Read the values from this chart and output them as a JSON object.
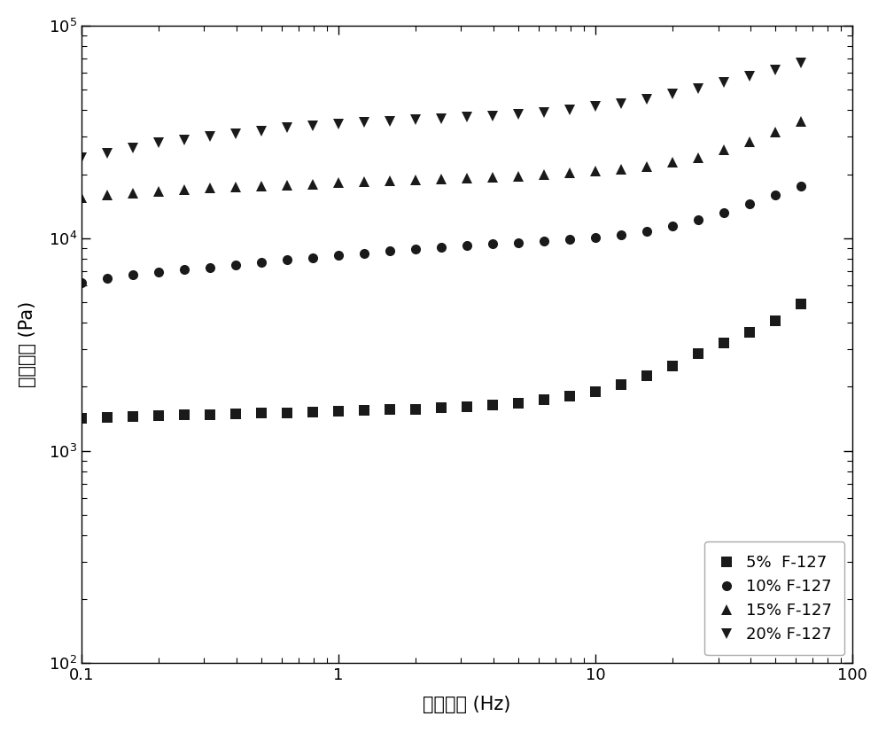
{
  "title": "",
  "xlabel": "扫描频率 (Hz)",
  "ylabel": "弹性模量 (Pa)",
  "xlim": [
    0.1,
    100
  ],
  "ylim": [
    100,
    100000
  ],
  "background_color": "#ffffff",
  "series": [
    {
      "label": "5%  F-127",
      "marker": "s",
      "color": "#1a1a1a",
      "x": [
        0.1,
        0.126,
        0.158,
        0.2,
        0.251,
        0.316,
        0.398,
        0.5,
        0.631,
        0.794,
        1.0,
        1.259,
        1.585,
        1.995,
        2.512,
        3.162,
        3.981,
        5.012,
        6.31,
        7.943,
        10.0,
        12.589,
        15.849,
        19.953,
        25.119,
        31.623,
        39.811,
        50.119,
        63.096
      ],
      "y": [
        1420,
        1440,
        1450,
        1460,
        1470,
        1480,
        1490,
        1500,
        1510,
        1520,
        1540,
        1550,
        1560,
        1570,
        1590,
        1610,
        1640,
        1680,
        1730,
        1800,
        1900,
        2050,
        2250,
        2500,
        2850,
        3200,
        3600,
        4100,
        4900
      ]
    },
    {
      "label": "10% F-127",
      "marker": "o",
      "color": "#1a1a1a",
      "x": [
        0.1,
        0.126,
        0.158,
        0.2,
        0.251,
        0.316,
        0.398,
        0.5,
        0.631,
        0.794,
        1.0,
        1.259,
        1.585,
        1.995,
        2.512,
        3.162,
        3.981,
        5.012,
        6.31,
        7.943,
        10.0,
        12.589,
        15.849,
        19.953,
        25.119,
        31.623,
        39.811,
        50.119,
        63.096
      ],
      "y": [
        6200,
        6500,
        6700,
        6900,
        7100,
        7300,
        7500,
        7700,
        7900,
        8100,
        8300,
        8500,
        8700,
        8900,
        9100,
        9200,
        9400,
        9500,
        9700,
        9900,
        10100,
        10400,
        10800,
        11400,
        12200,
        13200,
        14500,
        16000,
        17500
      ]
    },
    {
      "label": "15% F-127",
      "marker": "^",
      "color": "#1a1a1a",
      "x": [
        0.1,
        0.126,
        0.158,
        0.2,
        0.251,
        0.316,
        0.398,
        0.5,
        0.631,
        0.794,
        1.0,
        1.259,
        1.585,
        1.995,
        2.512,
        3.162,
        3.981,
        5.012,
        6.31,
        7.943,
        10.0,
        12.589,
        15.849,
        19.953,
        25.119,
        31.623,
        39.811,
        50.119,
        63.096
      ],
      "y": [
        15500,
        16000,
        16300,
        16600,
        16900,
        17200,
        17400,
        17600,
        17800,
        18000,
        18200,
        18400,
        18600,
        18800,
        19000,
        19200,
        19400,
        19600,
        19900,
        20200,
        20600,
        21100,
        21800,
        22700,
        24000,
        26000,
        28500,
        31500,
        35500
      ]
    },
    {
      "label": "20% F-127",
      "marker": "v",
      "color": "#1a1a1a",
      "x": [
        0.1,
        0.126,
        0.158,
        0.2,
        0.251,
        0.316,
        0.398,
        0.5,
        0.631,
        0.794,
        1.0,
        1.259,
        1.585,
        1.995,
        2.512,
        3.162,
        3.981,
        5.012,
        6.31,
        7.943,
        10.0,
        12.589,
        15.849,
        19.953,
        25.119,
        31.623,
        39.811,
        50.119,
        63.096
      ],
      "y": [
        24000,
        25000,
        26500,
        28000,
        29000,
        30000,
        31000,
        32000,
        33000,
        33800,
        34500,
        35000,
        35500,
        36000,
        36500,
        37000,
        37500,
        38200,
        39000,
        40000,
        41500,
        43000,
        45000,
        47500,
        50500,
        54000,
        58000,
        62000,
        67000
      ]
    }
  ],
  "marker_size": 8,
  "legend_loc": "lower right",
  "font_size_label": 15,
  "font_size_tick": 13,
  "font_size_legend": 13
}
